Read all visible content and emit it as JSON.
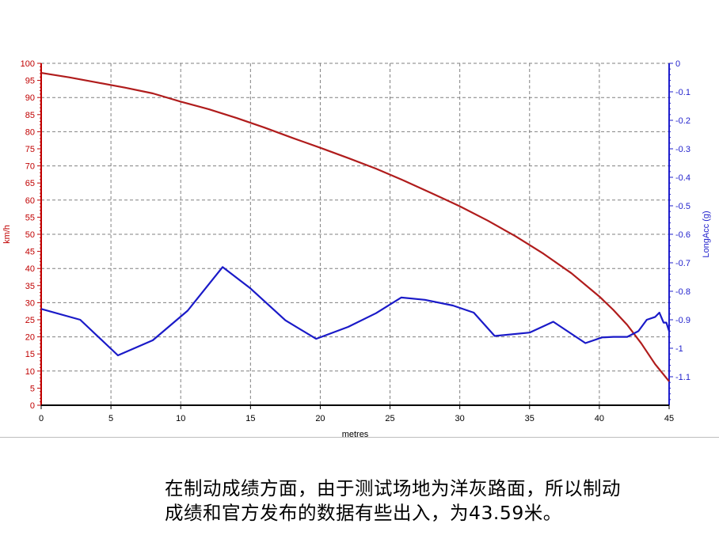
{
  "caption": {
    "line1": "在制动成绩方面，由于测试场地为洋灰路面，所以制动",
    "line2": "成绩和官方发布的数据有些出入，为43.59米。"
  },
  "colors": {
    "speed": "#b01c1c",
    "acc": "#1a1ac8",
    "grid": "#808080",
    "axis_left": "#c00000",
    "axis_right": "#1f1fcc"
  },
  "chart_data": {
    "type": "line",
    "xlabel": "metres",
    "ylabel": "km/h",
    "y2label": "LongAcc (g)",
    "xlim": [
      0,
      45
    ],
    "ylim": [
      0,
      100
    ],
    "y2lim": [
      -1.2,
      0
    ],
    "x_ticks": [
      "0",
      "5",
      "10",
      "15",
      "20",
      "25",
      "30",
      "35",
      "40",
      "45"
    ],
    "y_ticks": [
      "0",
      "5",
      "10",
      "15",
      "20",
      "25",
      "30",
      "35",
      "40",
      "45",
      "50",
      "55",
      "60",
      "65",
      "70",
      "75",
      "80",
      "85",
      "90",
      "95",
      "100"
    ],
    "y2_ticks": [
      "0",
      "-0.1",
      "-0.2",
      "-0.3",
      "-0.4",
      "-0.5",
      "-0.6",
      "-0.7",
      "-0.8",
      "-0.9",
      "-1",
      "-1.1"
    ],
    "grid": true,
    "series": [
      {
        "axis": "left",
        "color": "#b01c1c",
        "x": [
          0,
          2,
          4,
          6,
          8,
          10,
          12,
          14,
          16,
          18,
          20,
          22,
          24,
          26,
          28,
          30,
          32,
          34,
          36,
          38,
          40,
          41,
          42,
          43,
          44,
          45
        ],
        "y": [
          97.2,
          95.9,
          94.4,
          92.9,
          91.2,
          88.8,
          86.6,
          84.0,
          81.2,
          78.2,
          75.3,
          72.3,
          69.2,
          65.7,
          62.0,
          58.2,
          54.0,
          49.4,
          44.3,
          38.6,
          31.8,
          27.9,
          23.5,
          18.1,
          12.0,
          7.0
        ]
      },
      {
        "axis": "right",
        "color": "#1a1ac8",
        "x": [
          0,
          2.8,
          5.5,
          8,
          10.5,
          13,
          15,
          17.5,
          19.7,
          22,
          24,
          25.8,
          27.5,
          29.5,
          31,
          32.5,
          35,
          36.7,
          39,
          40.2,
          41,
          42,
          42.8,
          43.4,
          44,
          44.3,
          44.6,
          44.8,
          45
        ],
        "y": [
          -0.862,
          -0.9,
          -1.025,
          -0.972,
          -0.868,
          -0.715,
          -0.79,
          -0.902,
          -0.967,
          -0.925,
          -0.877,
          -0.822,
          -0.83,
          -0.85,
          -0.875,
          -0.957,
          -0.945,
          -0.907,
          -0.982,
          -0.962,
          -0.96,
          -0.96,
          -0.94,
          -0.9,
          -0.89,
          -0.875,
          -0.91,
          -0.91,
          -0.94
        ]
      }
    ]
  }
}
